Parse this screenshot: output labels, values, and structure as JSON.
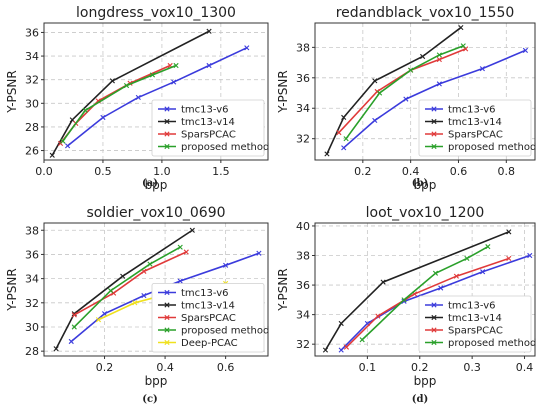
{
  "chart_data": [
    {
      "type": "line",
      "title": "longdress_vox10_1300",
      "caption": "(a)",
      "xlabel": "bpp",
      "ylabel": "Y-PSNR",
      "xlim": [
        0,
        1.9
      ],
      "ylim": [
        25.2,
        36.8
      ],
      "xticks": [
        0,
        0.5,
        1.0,
        1.5
      ],
      "xtick_labels": [
        "0.0",
        "0.5",
        "1.0",
        "1.5"
      ],
      "yticks": [
        26,
        28,
        30,
        32,
        34,
        36
      ],
      "yticks_labels": [
        "26",
        "28",
        "30",
        "32",
        "34",
        "36"
      ],
      "grid": true,
      "legend_position": "bottom-right",
      "series": [
        {
          "name": "tmc13-v6",
          "color": "#3b3bdc",
          "x": [
            0.2,
            0.5,
            0.8,
            1.1,
            1.4,
            1.72
          ],
          "y": [
            26.4,
            28.8,
            30.5,
            31.8,
            33.2,
            34.7
          ]
        },
        {
          "name": "tmc13-v14",
          "color": "#222222",
          "x": [
            0.07,
            0.24,
            0.58,
            1.4
          ],
          "y": [
            25.6,
            28.6,
            31.9,
            36.1
          ]
        },
        {
          "name": "SparsPCAC",
          "color": "#e03a3a",
          "x": [
            0.14,
            0.27,
            0.46,
            0.73,
            1.07
          ],
          "y": [
            26.6,
            28.3,
            30.2,
            31.7,
            33.2
          ]
        },
        {
          "name": "proposed method",
          "color": "#2aa02a",
          "x": [
            0.16,
            0.35,
            0.7,
            0.92,
            1.12
          ],
          "y": [
            26.8,
            29.4,
            31.5,
            32.4,
            33.2
          ]
        }
      ]
    },
    {
      "type": "line",
      "title": "redandblack_vox10_1550",
      "caption": "(b)",
      "xlabel": "bpp",
      "ylabel": "Y-PSNR",
      "xlim": [
        0,
        0.92
      ],
      "ylim": [
        30.6,
        39.6
      ],
      "xticks": [
        0.2,
        0.4,
        0.6,
        0.8
      ],
      "xtick_labels": [
        "0.2",
        "0.4",
        "0.6",
        "0.8"
      ],
      "yticks": [
        32,
        34,
        36,
        38
      ],
      "yticks_labels": [
        "32",
        "34",
        "36",
        "38"
      ],
      "grid": true,
      "legend_position": "bottom-right",
      "series": [
        {
          "name": "tmc13-v6",
          "color": "#3b3bdc",
          "x": [
            0.12,
            0.25,
            0.38,
            0.52,
            0.7,
            0.88
          ],
          "y": [
            31.4,
            33.2,
            34.6,
            35.6,
            36.6,
            37.8
          ]
        },
        {
          "name": "tmc13-v14",
          "color": "#222222",
          "x": [
            0.05,
            0.12,
            0.25,
            0.45,
            0.61
          ],
          "y": [
            31.0,
            33.4,
            35.8,
            37.4,
            39.3
          ]
        },
        {
          "name": "SparsPCAC",
          "color": "#e03a3a",
          "x": [
            0.1,
            0.26,
            0.4,
            0.52,
            0.63
          ],
          "y": [
            32.4,
            35.1,
            36.5,
            37.2,
            37.9
          ]
        },
        {
          "name": "proposed method",
          "color": "#2aa02a",
          "x": [
            0.13,
            0.27,
            0.4,
            0.52,
            0.62
          ],
          "y": [
            32.0,
            35.0,
            36.5,
            37.5,
            38.1
          ]
        }
      ]
    },
    {
      "type": "line",
      "title": "soldier_vox10_0690",
      "caption": "(c)",
      "xlabel": "bpp",
      "ylabel": "Y-PSNR",
      "xlim": [
        0,
        0.74
      ],
      "ylim": [
        27.6,
        38.6
      ],
      "xticks": [
        0.2,
        0.4,
        0.6
      ],
      "xtick_labels": [
        "0.2",
        "0.4",
        "0.6"
      ],
      "yticks": [
        28,
        30,
        32,
        34,
        36,
        38
      ],
      "yticks_labels": [
        "28",
        "30",
        "32",
        "34",
        "36",
        "38"
      ],
      "grid": true,
      "legend_position": "bottom-right",
      "series": [
        {
          "name": "tmc13-v6",
          "color": "#3b3bdc",
          "x": [
            0.09,
            0.2,
            0.33,
            0.45,
            0.6,
            0.71
          ],
          "y": [
            28.8,
            31.1,
            32.6,
            33.8,
            35.1,
            36.1
          ]
        },
        {
          "name": "tmc13-v14",
          "color": "#222222",
          "x": [
            0.04,
            0.1,
            0.26,
            0.49
          ],
          "y": [
            28.2,
            31.1,
            34.2,
            38.0
          ]
        },
        {
          "name": "SparsPCAC",
          "color": "#e03a3a",
          "x": [
            0.1,
            0.23,
            0.33,
            0.47
          ],
          "y": [
            31.0,
            32.8,
            34.6,
            36.2
          ]
        },
        {
          "name": "proposed method",
          "color": "#2aa02a",
          "x": [
            0.1,
            0.22,
            0.35,
            0.45
          ],
          "y": [
            30.0,
            33.0,
            35.2,
            36.6
          ]
        },
        {
          "name": "Deep-PCAC",
          "color": "#f0e11e",
          "x": [
            0.18,
            0.3,
            0.45,
            0.6
          ],
          "y": [
            30.6,
            32.0,
            33.0,
            33.6
          ]
        }
      ]
    },
    {
      "type": "line",
      "title": "loot_vox10_1200",
      "caption": "(d)",
      "xlabel": "bpp",
      "ylabel": "Y-PSNR",
      "xlim": [
        0,
        0.42
      ],
      "ylim": [
        31.2,
        40.2
      ],
      "xticks": [
        0.1,
        0.2,
        0.3,
        0.4
      ],
      "xtick_labels": [
        "0.1",
        "0.2",
        "0.3",
        "0.4"
      ],
      "yticks": [
        32,
        34,
        36,
        38,
        40
      ],
      "yticks_labels": [
        "32",
        "34",
        "36",
        "38",
        "40"
      ],
      "grid": true,
      "legend_position": "bottom-right",
      "series": [
        {
          "name": "tmc13-v6",
          "color": "#3b3bdc",
          "x": [
            0.05,
            0.1,
            0.17,
            0.24,
            0.32,
            0.41
          ],
          "y": [
            31.6,
            33.4,
            34.9,
            35.8,
            36.9,
            38.0
          ]
        },
        {
          "name": "tmc13-v14",
          "color": "#222222",
          "x": [
            0.02,
            0.05,
            0.13,
            0.37
          ],
          "y": [
            31.6,
            33.4,
            36.2,
            39.6
          ]
        },
        {
          "name": "SparsPCAC",
          "color": "#e03a3a",
          "x": [
            0.06,
            0.12,
            0.19,
            0.27,
            0.37
          ],
          "y": [
            31.8,
            33.9,
            35.4,
            36.6,
            37.8
          ]
        },
        {
          "name": "proposed method",
          "color": "#2aa02a",
          "x": [
            0.09,
            0.17,
            0.23,
            0.29,
            0.33
          ],
          "y": [
            32.3,
            35.0,
            36.8,
            37.8,
            38.6
          ]
        }
      ]
    }
  ]
}
